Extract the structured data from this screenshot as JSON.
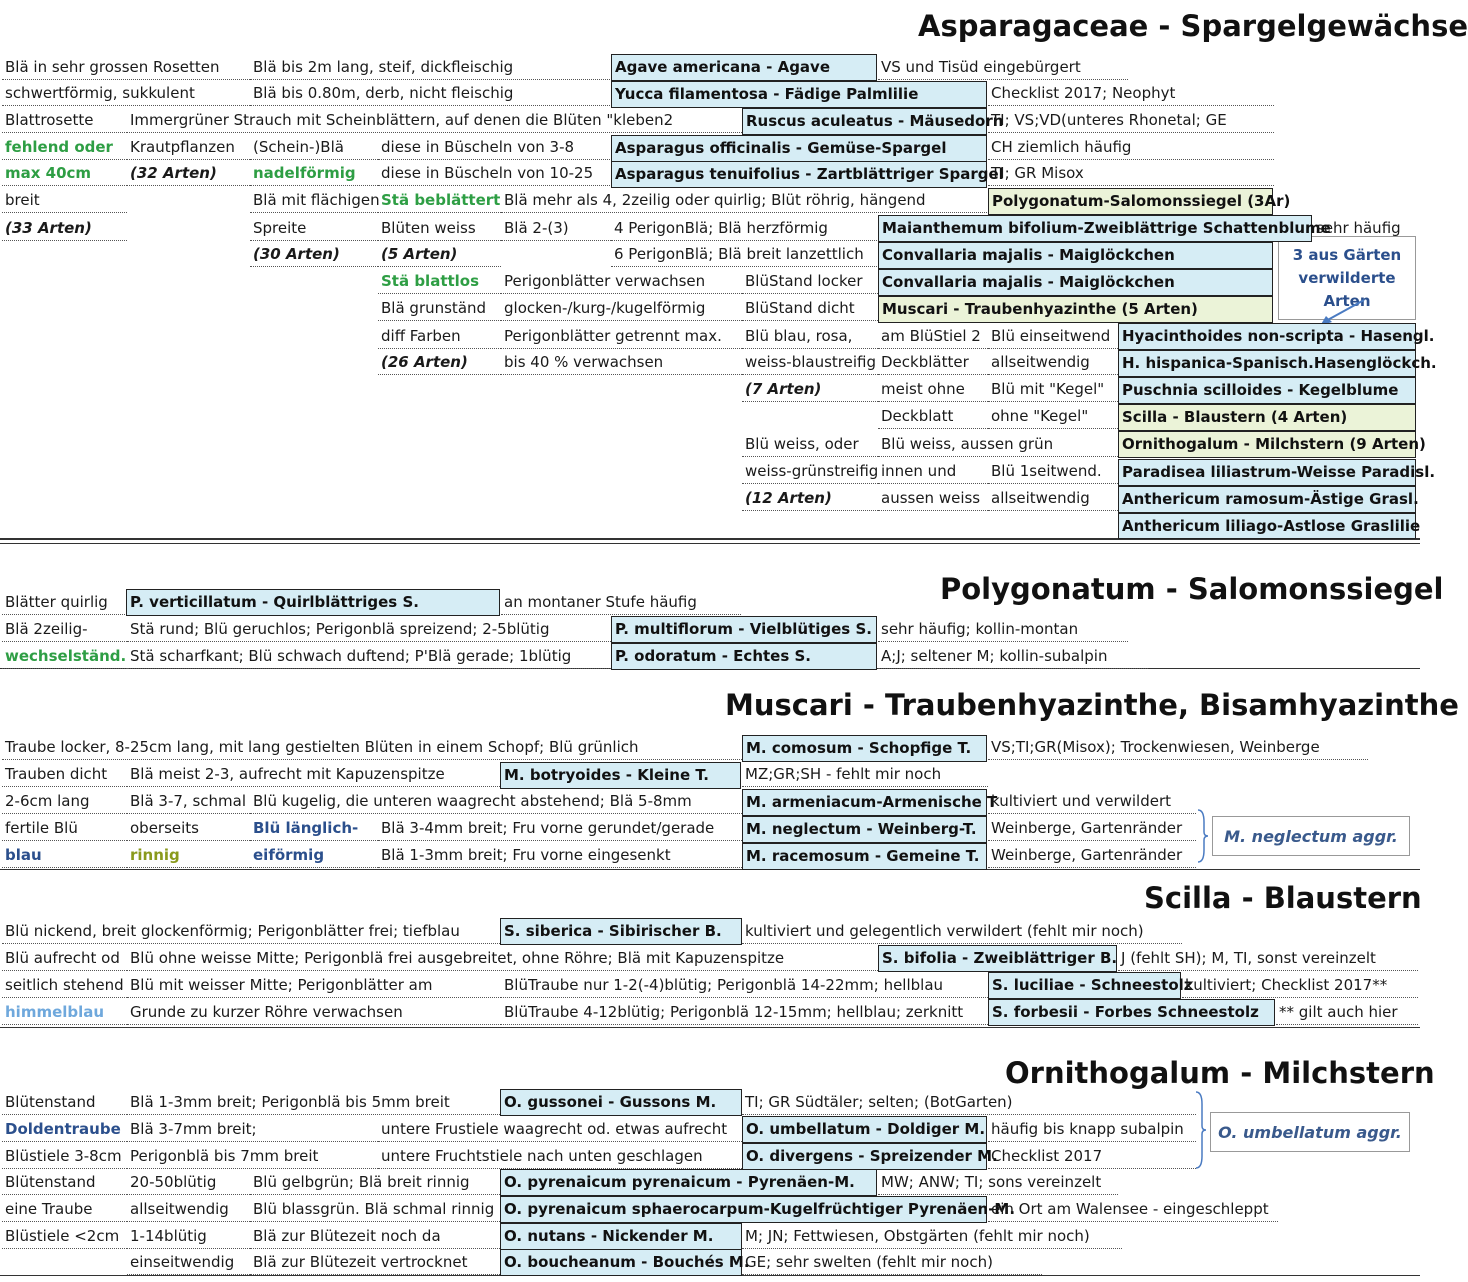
{
  "titles": {
    "aspar": "Asparagaceae - Spargelgewächse",
    "poly": "Polygonatum - Salomonssiegel",
    "musc": "Muscari - Traubenhyazinthe, Bisamhyazinthe",
    "scil": "Scilla - Blaustern",
    "orni": "Ornithogalum - Milchstern"
  },
  "callouts": {
    "gaerten": "3 aus Gärten verwilderte Arten",
    "neglectum": "M. neglectum aggr.",
    "umbellatum": "O. umbellatum aggr."
  },
  "cells": [
    {
      "r": "Blä in sehr grossen Rosetten"
    },
    {
      "r": "Blä bis 2m lang, steif, dickfleischig"
    },
    {
      "r": "Agave americana - Agave"
    },
    {
      "r": "VS und Tisüd eingebürgert"
    },
    {
      "r": "schwertförmig, sukkulent"
    },
    {
      "r": "Blä bis 0.80m, derb, nicht fleischig"
    },
    {
      "r": "Yucca filamentosa - Fädige Palmlilie"
    },
    {
      "r": "Checklist 2017; Neophyt"
    },
    {
      "r": "Blattrosette"
    },
    {
      "r": "Immergrüner Strauch mit Scheinblättern, auf denen die Blüten \"kleben2"
    },
    {
      "r": "Ruscus aculeatus - Mäusedorn"
    },
    {
      "r": "TI; VS;VD(unteres Rhonetal; GE"
    },
    {
      "r": "fehlend oder"
    },
    {
      "r": "Krautpflanzen"
    },
    {
      "r": "(Schein-)Blä"
    },
    {
      "r": "diese in Büscheln von 3-8"
    },
    {
      "r": "Asparagus officinalis - Gemüse-Spargel"
    },
    {
      "r": "CH ziemlich häufig"
    },
    {
      "r": "max 40cm"
    },
    {
      "r": "(32 Arten)"
    },
    {
      "r": "nadelförmig"
    },
    {
      "r": "diese in Büscheln von 10-25"
    },
    {
      "r": "Asparagus tenuifolius - Zartblättriger Spargel"
    },
    {
      "r": "TI; GR Misox"
    },
    {
      "r": "breit"
    },
    {
      "r": "Blä mit flächigen"
    },
    {
      "r": "Stä beblättert"
    },
    {
      "r": "Blä mehr als 4, 2zeilig oder quirlig; Blüt röhrig, hängend"
    },
    {
      "r": "Polygonatum-Salomonssiegel (3Ar)"
    },
    {
      "r": "(33 Arten)"
    },
    {
      "r": "Spreite"
    },
    {
      "r": "Blüten weiss"
    },
    {
      "r": "Blä 2-(3)"
    },
    {
      "r": "4 PerigonBlä; Blä herzförmig"
    },
    {
      "r": "Maianthemum bifolium-Zweiblättrige Schattenblume"
    },
    {
      "r": "sehr häufig"
    },
    {
      "r": "(30 Arten)"
    },
    {
      "r": "(5 Arten)"
    },
    {
      "r": "6 PerigonBlä; Blä breit lanzettlich"
    },
    {
      "r": "Convallaria majalis - Maiglöckchen"
    },
    {
      "r": "Stä blattlos"
    },
    {
      "r": "Perigonblätter verwachsen"
    },
    {
      "r": "BlüStand locker"
    },
    {
      "r": "Convallaria majalis - Maiglöckchen"
    },
    {
      "r": "Blä grunständ"
    },
    {
      "r": "glocken-/kurg-/kugelförmig"
    },
    {
      "r": "BlüStand dicht"
    },
    {
      "r": "Muscari - Traubenhyazinthe (5 Arten)"
    },
    {
      "r": "diff Farben"
    },
    {
      "r": "Perigonblätter getrennt max."
    },
    {
      "r": "Blü blau, rosa,"
    },
    {
      "r": "am BlüStiel 2"
    },
    {
      "r": "Blü einseitwend"
    },
    {
      "r": "Hyacinthoides non-scripta - Hasengl."
    },
    {
      "r": "(26 Arten)"
    },
    {
      "r": "bis 40 % verwachsen"
    },
    {
      "r": "weiss-blaustreifig"
    },
    {
      "r": "Deckblätter"
    },
    {
      "r": "allseitwendig"
    },
    {
      "r": "H. hispanica-Spanisch.Hasenglöckch."
    },
    {
      "r": "(7 Arten)"
    },
    {
      "r": "meist ohne"
    },
    {
      "r": "Blü mit \"Kegel\""
    },
    {
      "r": "Puschnia scilloides - Kegelblume"
    },
    {
      "r": "Deckblatt"
    },
    {
      "r": "ohne \"Kegel\""
    },
    {
      "r": "Scilla - Blaustern (4 Arten)"
    },
    {
      "r": "Blü weiss, oder"
    },
    {
      "r": "Blü weiss, aussen grün"
    },
    {
      "r": "Ornithogalum - Milchstern (9 Arten)"
    },
    {
      "r": "weiss-grünstreifig"
    },
    {
      "r": "innen und"
    },
    {
      "r": "Blü 1seitwend."
    },
    {
      "r": "Paradisea liliastrum-Weisse Paradisl."
    },
    {
      "r": "(12 Arten)"
    },
    {
      "r": "aussen weiss"
    },
    {
      "r": "allseitwendig"
    },
    {
      "r": "Anthericum ramosum-Ästige Grasl."
    },
    {
      "r": "Anthericum liliago-Astlose Graslilie"
    },
    {
      "r": "Blätter quirlig"
    },
    {
      "r": "P. verticillatum - Quirlblättriges S."
    },
    {
      "r": "an montaner Stufe häufig"
    },
    {
      "r": "Blä 2zeilig-"
    },
    {
      "r": "Stä rund; Blü geruchlos; Perigonblä spreizend; 2-5blütig"
    },
    {
      "r": "P. multiflorum - Vielblütiges S."
    },
    {
      "r": "sehr häufig; kollin-montan"
    },
    {
      "r": "wechselständ."
    },
    {
      "r": "Stä scharfkant; Blü schwach duftend; P'Blä gerade; 1blütig"
    },
    {
      "r": "P. odoratum - Echtes S."
    },
    {
      "r": "A;J; seltener M; kollin-subalpin"
    },
    {
      "r": "Traube locker, 8-25cm lang, mit lang gestielten Blüten in einem Schopf; Blü grünlich"
    },
    {
      "r": "M. comosum - Schopfige T."
    },
    {
      "r": "VS;TI;GR(Misox); Trockenwiesen, Weinberge"
    },
    {
      "r": "Trauben dicht"
    },
    {
      "r": "Blä meist 2-3, aufrecht mit Kapuzenspitze"
    },
    {
      "r": "M. botryoides - Kleine T."
    },
    {
      "r": "MZ;GR;SH - fehlt mir noch"
    },
    {
      "r": "2-6cm lang"
    },
    {
      "r": "Blä 3-7, schmal"
    },
    {
      "r": "Blü kugelig, die unteren waagrecht abstehend; Blä 5-8mm"
    },
    {
      "r": "M. armeniacum-Armenische T"
    },
    {
      "r": "kultiviert und verwildert"
    },
    {
      "r": "fertile Blü"
    },
    {
      "r": "oberseits"
    },
    {
      "r": "Blü länglich-"
    },
    {
      "r": "Blä 3-4mm breit; Fru vorne gerundet/gerade"
    },
    {
      "r": "M. neglectum - Weinberg-T."
    },
    {
      "r": "Weinberge, Gartenränder"
    },
    {
      "r": "blau"
    },
    {
      "r": "rinnig"
    },
    {
      "r": "eiförmig"
    },
    {
      "r": "Blä 1-3mm breit; Fru vorne eingesenkt"
    },
    {
      "r": "M. racemosum - Gemeine T."
    },
    {
      "r": "Weinberge, Gartenränder"
    },
    {
      "r": "Blü nickend, breit glockenförmig; Perigonblätter frei; tiefblau"
    },
    {
      "r": "S. siberica - Sibirischer B."
    },
    {
      "r": "kultiviert und gelegentlich verwildert (fehlt mir noch)"
    },
    {
      "r": "Blü aufrecht od"
    },
    {
      "r": "Blü ohne weisse Mitte; Perigonblä frei ausgebreitet, ohne Röhre; Blä mit Kapuzenspitze"
    },
    {
      "r": "S. bifolia - Zweiblättriger B."
    },
    {
      "r": "J (fehlt SH); M, TI, sonst vereinzelt"
    },
    {
      "r": "seitlich stehend"
    },
    {
      "r": "Blü mit weisser Mitte; Perigonblätter am"
    },
    {
      "r": "BlüTraube nur 1-2(-4)blütig; Perigonblä 14-22mm; hellblau"
    },
    {
      "r": "S. luciliae - Schneestolz"
    },
    {
      "r": "kultiviert; Checklist 2017**"
    },
    {
      "r": "himmelblau"
    },
    {
      "r": "Grunde zu kurzer Röhre verwachsen"
    },
    {
      "r": "BlüTraube 4-12blütig; Perigonblä 12-15mm; hellblau; zerknitt"
    },
    {
      "r": "S. forbesii - Forbes Schneestolz"
    },
    {
      "r": "** gilt auch hier"
    },
    {
      "r": "Blütenstand"
    },
    {
      "r": "Blä 1-3mm breit; Perigonblä bis 5mm breit"
    },
    {
      "r": "O. gussonei - Gussons M."
    },
    {
      "r": "TI; GR Südtäler; selten; (BotGarten)"
    },
    {
      "r": "Doldentraube"
    },
    {
      "r": "Blä 3-7mm breit;"
    },
    {
      "r": "untere Frustiele waagrecht od. etwas aufrecht"
    },
    {
      "r": "O. umbellatum - Doldiger M."
    },
    {
      "r": "häufig bis knapp subalpin"
    },
    {
      "r": "Blüstiele 3-8cm"
    },
    {
      "r": "Perigonblä bis 7mm breit"
    },
    {
      "r": "untere Fruchtstiele nach unten geschlagen"
    },
    {
      "r": "O. divergens - Spreizender M."
    },
    {
      "r": "Checklist 2017"
    },
    {
      "r": "Blütenstand"
    },
    {
      "r": "20-50blütig"
    },
    {
      "r": "Blü gelbgrün; Blä breit rinnig"
    },
    {
      "r": "O. pyrenaicum pyrenaicum - Pyrenäen-M."
    },
    {
      "r": "MW; ANW; TI; sons vereinzelt"
    },
    {
      "r": "eine Traube"
    },
    {
      "r": "allseitwendig"
    },
    {
      "r": "Blü blassgrün. Blä schmal rinnig"
    },
    {
      "r": "O. pyrenaicum sphaerocarpum-Kugelfrüchtiger Pyrenäen-M."
    },
    {
      "r": "ein Ort am Walensee - eingeschleppt"
    },
    {
      "r": "Blüstiele <2cm"
    },
    {
      "r": "1-14blütig"
    },
    {
      "r": "Blä zur Blütezeit noch da"
    },
    {
      "r": "O. nutans - Nickender M."
    },
    {
      "r": "M; JN; Fettwiesen, Obstgärten (fehlt mir noch)"
    },
    {
      "r": "einseitwendig"
    },
    {
      "r": "Blä zur Blütezeit vertrocknet"
    },
    {
      "r": "O. boucheanum - Bouchés M."
    },
    {
      "r": "GE; sehr swelten (fehlt mir noch)"
    }
  ]
}
